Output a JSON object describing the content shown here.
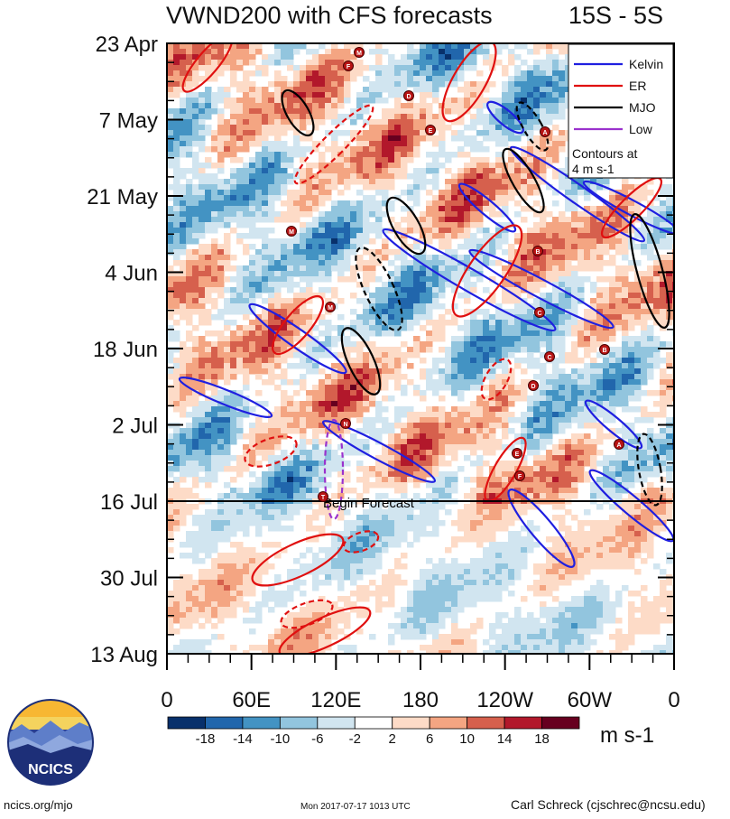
{
  "title": "VWND200 with CFS forecasts",
  "region": "15S - 5S",
  "chart_data": {
    "type": "heatmap",
    "variable": "VWND200",
    "y_ticks": [
      "23 Apr",
      "7 May",
      "21 May",
      "4 Jun",
      "18 Jun",
      "2 Jul",
      "16 Jul",
      "30 Jul",
      "13 Aug"
    ],
    "y_dates": [
      "2017-04-23",
      "2017-05-07",
      "2017-05-21",
      "2017-06-04",
      "2017-06-18",
      "2017-07-02",
      "2017-07-16",
      "2017-07-30",
      "2017-08-13"
    ],
    "x_ticks": [
      "0",
      "60E",
      "120E",
      "180",
      "120W",
      "60W",
      "0"
    ],
    "x_lon": [
      0,
      60,
      120,
      180,
      240,
      300,
      360
    ],
    "forecast_start": "2017-07-16",
    "forecast_label": "Begin Forecast",
    "colorbar": {
      "levels": [
        -18,
        -14,
        -10,
        -6,
        -2,
        2,
        6,
        10,
        14,
        18
      ],
      "labels": [
        "-18",
        "-14",
        "-10",
        "-6",
        "-2",
        "2",
        "6",
        "10",
        "14",
        "18"
      ],
      "colors": [
        "#08306b",
        "#2166ac",
        "#4393c3",
        "#92c5de",
        "#d1e5f0",
        "#ffffff",
        "#fddbc7",
        "#f4a582",
        "#d6604d",
        "#b2182b",
        "#67001f"
      ],
      "unit": "m s-1"
    },
    "legend": {
      "position": "top-right",
      "entries": [
        {
          "name": "Kelvin",
          "color": "#1f1fe0"
        },
        {
          "name": "ER",
          "color": "#e01010"
        },
        {
          "name": "MJO",
          "color": "#000000"
        },
        {
          "name": "Low",
          "color": "#9a32cd"
        }
      ],
      "note": "Contours at\n4 m s-1"
    },
    "storm_markers": [
      "M",
      "F",
      "D",
      "E",
      "A",
      "M",
      "B",
      "C",
      "M",
      "C",
      "B",
      "D",
      "N",
      "E",
      "F",
      "T",
      "A"
    ]
  },
  "footer": {
    "logo_text": "NCICS",
    "url": "ncics.org/mjo",
    "timestamp": "Mon 2017-07-17 1013 UTC",
    "author": "Carl Schreck (cjschrec@ncsu.edu)"
  }
}
